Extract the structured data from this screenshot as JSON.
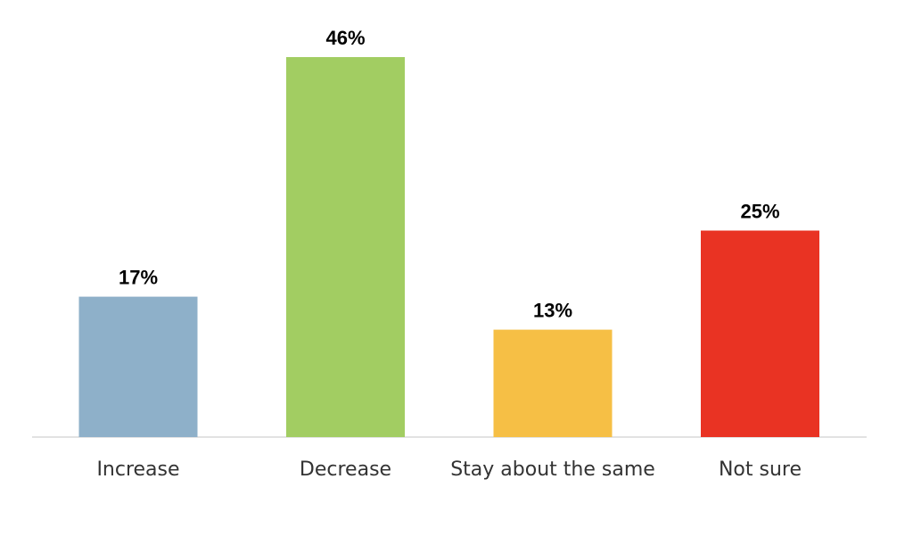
{
  "chart_data": {
    "type": "bar",
    "categories": [
      "Increase",
      "Decrease",
      "Stay about the same",
      "Not sure"
    ],
    "values": [
      17,
      46,
      13,
      25
    ],
    "value_labels": [
      "17%",
      "46%",
      "13%",
      "25%"
    ],
    "colors": [
      "#8EB0C9",
      "#A2CD62",
      "#F6BF45",
      "#E93323"
    ],
    "title": "",
    "xlabel": "",
    "ylabel": "",
    "ylim": [
      0,
      46
    ],
    "grid": false,
    "legend": "none"
  }
}
